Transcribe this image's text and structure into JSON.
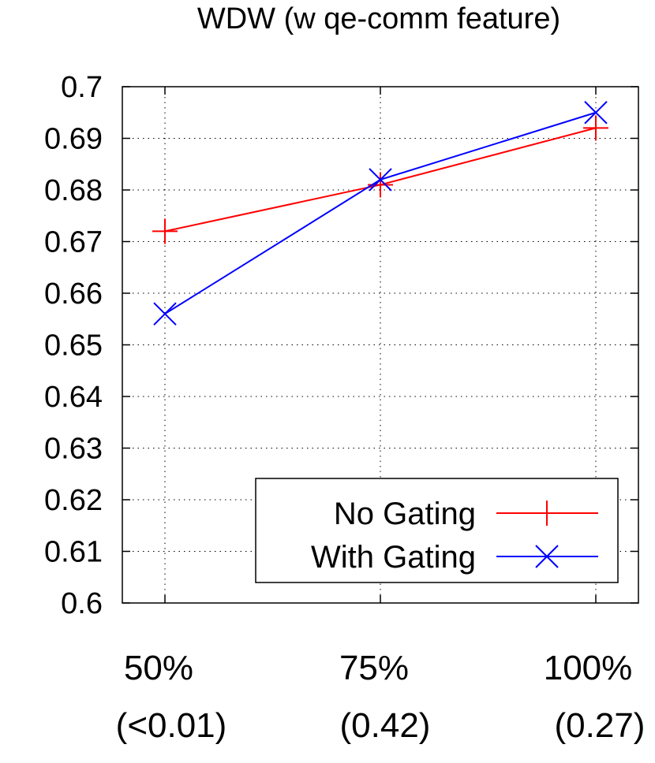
{
  "chart_data": {
    "type": "line",
    "title": "WDW (w qe-comm feature)",
    "categories": [
      "50%",
      "75%",
      "100%"
    ],
    "category_sublabels": [
      "(<0.01)",
      "(0.42)",
      "(0.27)"
    ],
    "ylim": [
      0.6,
      0.7
    ],
    "yticks": [
      "0.6",
      "0.61",
      "0.62",
      "0.63",
      "0.64",
      "0.65",
      "0.66",
      "0.67",
      "0.68",
      "0.69",
      "0.7"
    ],
    "grid": true,
    "legend_position": "bottom-right",
    "series": [
      {
        "name": "No Gating",
        "values": [
          0.672,
          0.681,
          0.692
        ],
        "color": "#ff0000",
        "marker": "plus"
      },
      {
        "name": "With Gating",
        "values": [
          0.656,
          0.682,
          0.695
        ],
        "color": "#0000ff",
        "marker": "cross"
      }
    ]
  }
}
